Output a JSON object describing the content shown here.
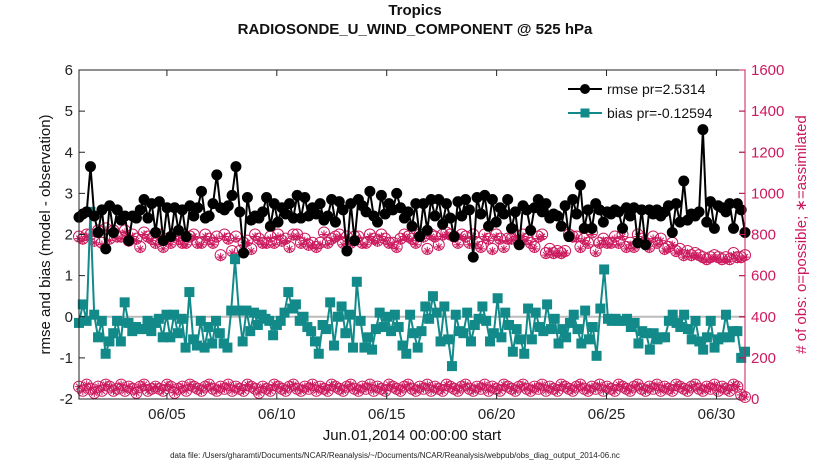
{
  "chart_data": {
    "type": "line",
    "title": "Tropics",
    "subtitle": "RADIOSONDE_U_WIND_COMPONENT @ 525 hPa",
    "xlabel": "Jun.01,2014 00:00:00 start",
    "ylabel_left": "rmse and bias (model - observation)",
    "ylabel_right": "# of obs: o=possible; ∗=assimilated",
    "xlim": [
      1,
      31.3
    ],
    "ylim_left": [
      -2,
      6
    ],
    "ylim_right": [
      0,
      1600
    ],
    "xticks": [
      {
        "value": 5.0,
        "label": "06/05"
      },
      {
        "value": 10.0,
        "label": "06/10"
      },
      {
        "value": 15.0,
        "label": "06/15"
      },
      {
        "value": 20.0,
        "label": "06/20"
      },
      {
        "value": 25.0,
        "label": "06/25"
      },
      {
        "value": 30.0,
        "label": "06/30"
      }
    ],
    "yticks_left": [
      -2,
      -1,
      0,
      1,
      2,
      3,
      4,
      5,
      6
    ],
    "yticks_right": [
      0,
      200,
      400,
      600,
      800,
      1000,
      1200,
      1400,
      1600
    ],
    "colors": {
      "rmse": "#000000",
      "bias": "#138a8a",
      "obs": "#cc1a5e",
      "zero_line": "#bbbbbb"
    },
    "series": [
      {
        "name": "rmse pr=2.5314",
        "axis": "left",
        "values": [
          2.42,
          2.5,
          2.55,
          3.65,
          2.45,
          2.05,
          2.6,
          1.65,
          2.7,
          2.05,
          2.6,
          2.35,
          2.45,
          1.85,
          2.45,
          2.4,
          2.6,
          2.85,
          2.4,
          2.75,
          2.05,
          2.8,
          1.85,
          2.65,
          1.95,
          2.65,
          2.1,
          2.6,
          1.95,
          2.7,
          2.45,
          2.65,
          3.05,
          2.4,
          2.45,
          2.75,
          3.45,
          2.65,
          2.6,
          2.7,
          2.95,
          3.65,
          2.55,
          1.55,
          2.9,
          2.35,
          2.45,
          2.4,
          2.55,
          2.9,
          2.2,
          2.75,
          2.3,
          2.65,
          2.5,
          2.75,
          2.4,
          2.95,
          2.4,
          2.9,
          2.45,
          2.65,
          2.5,
          2.75,
          2.35,
          2.45,
          2.85,
          2.3,
          2.8,
          2.6,
          1.6,
          2.75,
          1.85,
          2.85,
          2.7,
          2.55,
          3.05,
          2.45,
          2.3,
          2.95,
          2.5,
          2.75,
          2.6,
          3.0,
          2.65,
          2.4,
          2.55,
          2.2,
          2.75,
          1.95,
          2.75,
          2.1,
          2.85,
          2.45,
          2.85,
          2.25,
          2.75,
          2.4,
          1.95,
          2.8,
          2.45,
          2.85,
          2.6,
          1.45,
          2.9,
          2.5,
          2.95,
          2.2,
          2.85,
          2.3,
          2.65,
          2.5,
          2.85,
          2.15,
          2.55,
          1.75,
          2.7,
          2.6,
          2.1,
          2.65,
          2.85,
          2.55,
          2.75,
          2.4,
          2.5,
          2.45,
          2.2,
          2.7,
          1.95,
          2.85,
          2.5,
          3.2,
          2.15,
          2.6,
          2.15,
          2.75,
          2.6,
          2.3,
          2.55,
          2.5,
          2.6,
          2.55,
          2.15,
          2.65,
          2.45,
          2.65,
          1.8,
          2.6,
          1.75,
          2.6,
          2.5,
          2.6,
          2.45,
          2.55,
          2.7,
          2.05,
          2.75,
          2.3,
          3.3,
          2.35,
          2.5,
          2.45,
          2.55,
          4.55,
          2.3,
          2.8,
          2.15,
          2.7,
          2.65,
          2.55,
          2.75,
          2.15,
          2.75,
          2.6,
          2.05
        ]
      },
      {
        "name": "bias pr=-0.12594",
        "axis": "left",
        "values": [
          -0.15,
          0.3,
          -0.1,
          2.55,
          0.05,
          -0.5,
          -0.1,
          -0.9,
          -0.6,
          -0.4,
          -0.1,
          -0.6,
          0.35,
          -0.15,
          -0.35,
          -0.25,
          -0.3,
          -0.3,
          -0.1,
          -0.35,
          -0.15,
          -0.05,
          -0.5,
          0.05,
          -0.5,
          0.05,
          -0.4,
          -0.05,
          -0.75,
          0.6,
          -0.55,
          -0.7,
          -0.1,
          -0.75,
          -0.25,
          -0.65,
          -0.1,
          -0.4,
          -0.65,
          -0.75,
          0.15,
          1.4,
          0.15,
          -0.6,
          0.15,
          -0.35,
          0.1,
          -0.2,
          0.05,
          -0.05,
          -0.1,
          -0.45,
          -0.2,
          -0.1,
          0.1,
          0.6,
          0.2,
          0.3,
          -0.1,
          0.0,
          -0.25,
          -0.35,
          -0.6,
          -0.9,
          -0.2,
          -0.3,
          0.35,
          -0.7,
          0.0,
          0.25,
          -0.4,
          0.05,
          -0.75,
          0.85,
          -0.1,
          -0.75,
          -0.5,
          -0.8,
          -0.3,
          0.1,
          -0.25,
          0.0,
          -0.35,
          0.05,
          -0.25,
          -0.7,
          -0.9,
          0.05,
          -0.4,
          -0.75,
          -0.35,
          0.25,
          -0.05,
          0.5,
          0.1,
          -0.6,
          0.25,
          -0.55,
          -1.2,
          0.05,
          -0.35,
          -0.4,
          0.1,
          -0.6,
          -0.2,
          -0.05,
          0.25,
          -0.1,
          -0.6,
          -0.4,
          0.45,
          -0.5,
          0.1,
          -0.2,
          -0.85,
          -0.3,
          -0.55,
          -0.9,
          0.2,
          -0.55,
          0.1,
          -0.25,
          -0.35,
          0.3,
          -0.3,
          -0.05,
          -0.65,
          -0.3,
          -0.5,
          -0.15,
          0.05,
          -0.3,
          -0.65,
          0.15,
          -0.55,
          -0.25,
          -0.95,
          0.2,
          1.15,
          -0.05,
          -0.1,
          -0.05,
          -0.1,
          -0.1,
          -0.05,
          -0.25,
          -0.15,
          -0.65,
          -0.35,
          -0.4,
          -0.8,
          -0.4,
          -0.55,
          -0.5,
          -0.5,
          -0.1,
          0.05,
          -0.15,
          -0.25,
          0.05,
          -0.3,
          -0.55,
          -0.1,
          -0.6,
          -0.8,
          -0.5,
          -0.1,
          -0.75,
          -0.55,
          -0.5,
          0.05,
          -0.5,
          -0.35,
          -0.35,
          -1.0,
          -0.85
        ]
      }
    ],
    "obs_possible": [
      790,
      780,
      800,
      800,
      770,
      820,
      760,
      830,
      780,
      820,
      790,
      790,
      820,
      770,
      800,
      780,
      740,
      810,
      790,
      780,
      760,
      800,
      740,
      780,
      760,
      800,
      780,
      760,
      760,
      790,
      800,
      760,
      760,
      800,
      780,
      760,
      790,
      700,
      800,
      780,
      720,
      790,
      720,
      760,
      770,
      730,
      800,
      780,
      760,
      760,
      790,
      760,
      800,
      770,
      780,
      740,
      800,
      800,
      760,
      780,
      750,
      760,
      740,
      760,
      810,
      760,
      780,
      790,
      800,
      760,
      790,
      760,
      790,
      790,
      760,
      760,
      800,
      780,
      770,
      800,
      780,
      760,
      760,
      740,
      780,
      800,
      790,
      780,
      760,
      800,
      790,
      730,
      800,
      790,
      750,
      800,
      810,
      800,
      790,
      760,
      800,
      790,
      760,
      800,
      760,
      740,
      800,
      780,
      730,
      800,
      780,
      740,
      780,
      780,
      800,
      760,
      800,
      780,
      760,
      740,
      790,
      800,
      710,
      730,
      710,
      720,
      710,
      720,
      800,
      790,
      790,
      740,
      780,
      760,
      810,
      720,
      760,
      780,
      760,
      760,
      790,
      760,
      800,
      740,
      760,
      740,
      800,
      780,
      760,
      740,
      790,
      760,
      780,
      730,
      740,
      760,
      720,
      730,
      700,
      720,
      700,
      710,
      700,
      690,
      680,
      690,
      700,
      690,
      680,
      690,
      680,
      710,
      690,
      690,
      700
    ],
    "obs_assimilated": [
      780,
      770,
      790,
      790,
      760,
      810,
      750,
      820,
      770,
      810,
      780,
      780,
      810,
      760,
      790,
      770,
      730,
      800,
      780,
      770,
      750,
      790,
      730,
      770,
      750,
      790,
      770,
      750,
      750,
      780,
      790,
      750,
      750,
      790,
      770,
      750,
      780,
      690,
      790,
      770,
      710,
      780,
      710,
      750,
      760,
      720,
      790,
      770,
      750,
      750,
      780,
      750,
      790,
      760,
      770,
      730,
      790,
      790,
      750,
      770,
      740,
      750,
      730,
      750,
      800,
      750,
      770,
      780,
      790,
      750,
      780,
      750,
      780,
      780,
      750,
      750,
      790,
      770,
      760,
      790,
      770,
      750,
      750,
      730,
      770,
      790,
      780,
      770,
      750,
      790,
      780,
      720,
      790,
      780,
      740,
      790,
      800,
      790,
      780,
      750,
      790,
      780,
      750,
      790,
      750,
      730,
      790,
      770,
      720,
      790,
      770,
      730,
      770,
      770,
      790,
      750,
      790,
      770,
      750,
      730,
      780,
      790,
      700,
      720,
      700,
      710,
      700,
      710,
      790,
      780,
      780,
      730,
      770,
      750,
      800,
      710,
      750,
      770,
      750,
      750,
      780,
      750,
      790,
      730,
      750,
      730,
      790,
      770,
      750,
      730,
      780,
      750,
      770,
      720,
      730,
      750,
      710,
      720,
      690,
      710,
      690,
      700,
      690,
      680,
      670,
      680,
      690,
      680,
      670,
      680,
      670,
      700,
      680,
      680,
      690
    ],
    "obs_low": [
      60,
      40,
      70,
      50,
      30,
      60,
      40,
      70,
      60,
      40,
      50,
      70,
      40,
      60,
      50,
      30,
      60,
      70,
      40,
      50,
      60,
      50,
      40,
      70,
      60,
      30,
      50,
      60,
      40,
      70,
      60,
      50,
      40,
      60,
      70,
      50,
      40,
      60,
      50,
      70,
      40,
      60,
      50,
      40,
      70,
      60,
      50,
      30,
      60,
      50,
      40,
      70,
      60,
      50,
      40,
      60,
      70,
      50,
      40,
      60,
      50,
      70,
      40,
      60,
      50,
      40,
      70,
      60,
      50,
      40,
      60,
      70,
      50,
      40,
      60,
      50,
      70,
      40,
      60,
      50,
      40,
      70,
      60,
      50,
      40,
      60,
      70,
      50,
      40,
      60,
      50,
      70,
      40,
      60,
      50,
      40,
      70,
      60,
      50,
      40,
      60,
      70,
      50,
      40,
      60,
      50,
      70,
      40,
      60,
      50,
      40,
      70,
      60,
      50,
      40,
      60,
      70,
      50,
      40,
      60,
      50,
      70,
      40,
      60,
      50,
      40,
      70,
      60,
      50,
      40,
      60,
      70,
      50,
      40,
      60,
      50,
      70,
      40,
      60,
      50,
      40,
      70,
      60,
      50,
      40,
      60,
      70,
      50,
      40,
      60,
      50,
      70,
      40,
      60,
      50,
      40,
      70,
      60,
      50,
      40,
      60,
      70,
      50,
      40,
      60,
      50,
      70,
      40,
      60,
      50,
      40,
      70,
      60,
      20,
      10
    ],
    "legend": {
      "location": "top-right",
      "entries": [
        "rmse pr=2.5314",
        "bias pr=-0.12594"
      ]
    },
    "grid": false
  },
  "footnote": "data file: /Users/gharamti/Documents/NCAR/Reanalysis/~/Documents/NCAR/Reanalysis/webpub/obs_diag_output_2014-06.nc"
}
